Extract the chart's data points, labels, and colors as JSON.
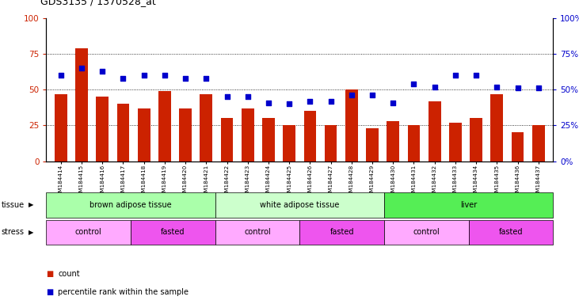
{
  "title": "GDS3135 / 1370528_at",
  "samples": [
    "GSM184414",
    "GSM184415",
    "GSM184416",
    "GSM184417",
    "GSM184418",
    "GSM184419",
    "GSM184420",
    "GSM184421",
    "GSM184422",
    "GSM184423",
    "GSM184424",
    "GSM184425",
    "GSM184426",
    "GSM184427",
    "GSM184428",
    "GSM184429",
    "GSM184430",
    "GSM184431",
    "GSM184432",
    "GSM184433",
    "GSM184434",
    "GSM184435",
    "GSM184436",
    "GSM184437"
  ],
  "count": [
    47,
    79,
    45,
    40,
    37,
    49,
    37,
    47,
    30,
    37,
    30,
    25,
    35,
    25,
    50,
    23,
    28,
    25,
    42,
    27,
    30,
    47,
    20,
    25
  ],
  "percentile": [
    60,
    65,
    63,
    58,
    60,
    60,
    58,
    58,
    45,
    45,
    41,
    40,
    42,
    42,
    46,
    46,
    41,
    54,
    52,
    60,
    60,
    52,
    51,
    51
  ],
  "bar_color": "#cc2200",
  "dot_color": "#0000cc",
  "tissue_groups": [
    {
      "label": "brown adipose tissue",
      "start": 0,
      "end": 8,
      "color": "#aaffaa"
    },
    {
      "label": "white adipose tissue",
      "start": 8,
      "end": 16,
      "color": "#ccffcc"
    },
    {
      "label": "liver",
      "start": 16,
      "end": 24,
      "color": "#55ee55"
    }
  ],
  "stress_groups": [
    {
      "label": "control",
      "start": 0,
      "end": 4,
      "color": "#ffaaff"
    },
    {
      "label": "fasted",
      "start": 4,
      "end": 8,
      "color": "#ee55ee"
    },
    {
      "label": "control",
      "start": 8,
      "end": 12,
      "color": "#ffaaff"
    },
    {
      "label": "fasted",
      "start": 12,
      "end": 16,
      "color": "#ee55ee"
    },
    {
      "label": "control",
      "start": 16,
      "end": 20,
      "color": "#ffaaff"
    },
    {
      "label": "fasted",
      "start": 20,
      "end": 24,
      "color": "#ee55ee"
    }
  ],
  "ylim_left": [
    0,
    100
  ],
  "ylim_right": [
    0,
    100
  ],
  "yticks_left": [
    0,
    25,
    50,
    75,
    100
  ],
  "yticks_right": [
    0,
    25,
    50,
    75,
    100
  ],
  "ytick_labels_right": [
    "0%",
    "25%",
    "50%",
    "75%",
    "100%"
  ],
  "grid_lines": [
    25,
    50,
    75
  ],
  "tissue_label": "tissue",
  "stress_label": "stress",
  "legend_count_label": "count",
  "legend_pct_label": "percentile rank within the sample",
  "bg_color": "#ffffff"
}
